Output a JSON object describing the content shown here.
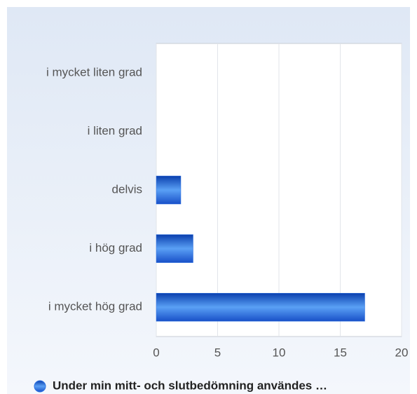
{
  "chart_data": {
    "type": "bar",
    "orientation": "horizontal",
    "categories": [
      "i mycket liten grad",
      "i liten grad",
      "delvis",
      "i hög grad",
      "i mycket hög grad"
    ],
    "series": [
      {
        "name": "Under min mitt- och slutbedömning användes …",
        "color": "#2a6fe0",
        "values": [
          0,
          0,
          2,
          3,
          17
        ]
      }
    ],
    "xlim": [
      0,
      20
    ],
    "xticks": [
      0,
      5,
      10,
      15,
      20
    ],
    "grid": true
  }
}
